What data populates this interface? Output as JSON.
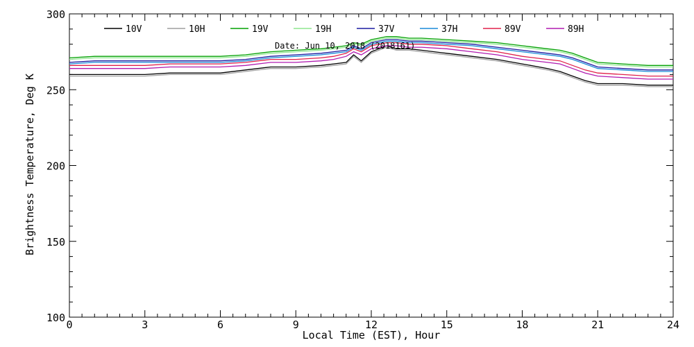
{
  "chart_data": {
    "type": "line",
    "annotation": "Date: Jun 10, 2018 (2018161)",
    "xlabel": "Local Time (EST), Hour",
    "ylabel": "Brightness Temperature, Deg K",
    "xlim": [
      0,
      24
    ],
    "ylim": [
      100,
      300
    ],
    "xticks": [
      0,
      3,
      6,
      9,
      12,
      15,
      18,
      21,
      24
    ],
    "yticks": [
      100,
      150,
      200,
      250,
      300
    ],
    "grid": false,
    "legend_position": "top",
    "x": [
      0,
      1,
      2,
      3,
      4,
      5,
      6,
      7,
      8,
      9,
      10,
      10.5,
      11,
      11.3,
      11.6,
      12,
      12.3,
      12.6,
      13,
      13.5,
      14,
      15,
      16,
      17,
      18,
      19,
      19.5,
      20,
      20.5,
      21,
      22,
      23,
      24
    ],
    "series": [
      {
        "name": "10V",
        "color": "#000000",
        "values": [
          260,
          260,
          260,
          260,
          261,
          261,
          261,
          263,
          265,
          265,
          266,
          267,
          268,
          273,
          269,
          275,
          277,
          279,
          277,
          277,
          276,
          274,
          272,
          270,
          267,
          264,
          262,
          259,
          256,
          254,
          254,
          253,
          253
        ]
      },
      {
        "name": "10H",
        "color": "#9e9e9e",
        "values": [
          259,
          259,
          259,
          259,
          260,
          260,
          260,
          262,
          264,
          264,
          265,
          266,
          267,
          272,
          268,
          274,
          276,
          278,
          276,
          276,
          275,
          273,
          271,
          269,
          266,
          263,
          261,
          258,
          255,
          253,
          253,
          252,
          252
        ]
      },
      {
        "name": "19V",
        "color": "#00a000",
        "values": [
          271,
          272,
          272,
          272,
          272,
          272,
          272,
          273,
          275,
          276,
          277,
          278,
          279,
          281,
          280,
          283,
          284,
          285,
          285,
          284,
          284,
          283,
          282,
          281,
          279,
          277,
          276,
          274,
          271,
          268,
          267,
          266,
          266
        ]
      },
      {
        "name": "19H",
        "color": "#8ee58e",
        "values": [
          270,
          271,
          271,
          271,
          271,
          271,
          271,
          272,
          274,
          275,
          276,
          277,
          278,
          280,
          279,
          282,
          283,
          284,
          284,
          283,
          283,
          282,
          281,
          280,
          278,
          276,
          275,
          273,
          270,
          267,
          266,
          265,
          265
        ]
      },
      {
        "name": "37V",
        "color": "#1a1aa0",
        "values": [
          268,
          269,
          269,
          269,
          269,
          269,
          269,
          270,
          272,
          273,
          274,
          275,
          276,
          279,
          277,
          281,
          282,
          283,
          283,
          282,
          282,
          281,
          280,
          278,
          276,
          274,
          273,
          271,
          268,
          265,
          264,
          263,
          263
        ]
      },
      {
        "name": "37H",
        "color": "#1a8ad8",
        "values": [
          267,
          268,
          268,
          268,
          268,
          268,
          268,
          269,
          271,
          272,
          273,
          274,
          275,
          278,
          276,
          280,
          281,
          282,
          282,
          281,
          281,
          280,
          279,
          277,
          275,
          273,
          272,
          270,
          267,
          264,
          263,
          262,
          262
        ]
      },
      {
        "name": "89V",
        "color": "#e0204a",
        "values": [
          266,
          266,
          266,
          266,
          267,
          267,
          267,
          268,
          270,
          270,
          271,
          272,
          274,
          277,
          275,
          279,
          280,
          281,
          281,
          280,
          280,
          279,
          277,
          275,
          272,
          270,
          269,
          266,
          263,
          261,
          260,
          259,
          259
        ]
      },
      {
        "name": "89H",
        "color": "#b01ab0",
        "values": [
          264,
          264,
          264,
          264,
          265,
          265,
          265,
          266,
          268,
          268,
          269,
          270,
          272,
          275,
          273,
          277,
          278,
          279,
          279,
          278,
          278,
          277,
          275,
          273,
          270,
          268,
          267,
          264,
          261,
          259,
          258,
          257,
          257
        ]
      }
    ]
  }
}
